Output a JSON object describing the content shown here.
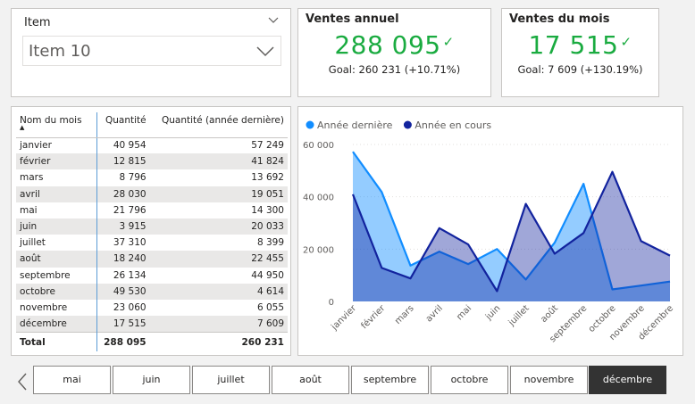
{
  "slicer": {
    "title": "Item",
    "selected": "Item 10"
  },
  "kpi_annual": {
    "title": "Ventes annuel",
    "value": "288 095",
    "goal": "Goal: 260 231 (+10.71%)",
    "color": "#1aab40"
  },
  "kpi_month": {
    "title": "Ventes du mois",
    "value": "17 515",
    "goal": "Goal: 7 609 (+130.19%)",
    "color": "#1aab40"
  },
  "table": {
    "headers": [
      "Nom du mois",
      "Quantité",
      "Quantité (année dernière)"
    ],
    "rows": [
      [
        "janvier",
        "40 954",
        "57 249"
      ],
      [
        "février",
        "12 815",
        "41 824"
      ],
      [
        "mars",
        "8 796",
        "13 692"
      ],
      [
        "avril",
        "28 030",
        "19 051"
      ],
      [
        "mai",
        "21 796",
        "14 300"
      ],
      [
        "juin",
        "3 915",
        "20 033"
      ],
      [
        "juillet",
        "37 310",
        "8 399"
      ],
      [
        "août",
        "18 240",
        "22 455"
      ],
      [
        "septembre",
        "26 134",
        "44 950"
      ],
      [
        "octobre",
        "49 530",
        "4 614"
      ],
      [
        "novembre",
        "23 060",
        "6 055"
      ],
      [
        "décembre",
        "17 515",
        "7 609"
      ]
    ],
    "total": [
      "Total",
      "288 095",
      "260 231"
    ]
  },
  "chart_data": {
    "type": "area",
    "categories": [
      "janvier",
      "février",
      "mars",
      "avril",
      "mai",
      "juin",
      "juillet",
      "août",
      "septembre",
      "octobre",
      "novembre",
      "décembre"
    ],
    "series": [
      {
        "name": "Année dernière",
        "color": "#118dff",
        "values": [
          57249,
          41824,
          13692,
          19051,
          14300,
          20033,
          8399,
          22455,
          44950,
          4614,
          6055,
          7609
        ]
      },
      {
        "name": "Année en cours",
        "color": "#12239e",
        "values": [
          40954,
          12815,
          8796,
          28030,
          21796,
          3915,
          37310,
          18240,
          26134,
          49530,
          23060,
          17515
        ]
      }
    ],
    "yticks": [
      "0",
      "20 000",
      "40 000",
      "60 000"
    ],
    "ylim": [
      0,
      60000
    ],
    "legend": "top-left"
  },
  "months_slicer": {
    "items": [
      "mai",
      "juin",
      "juillet",
      "août",
      "septembre",
      "octobre",
      "novembre",
      "décembre"
    ],
    "selected": "décembre"
  }
}
